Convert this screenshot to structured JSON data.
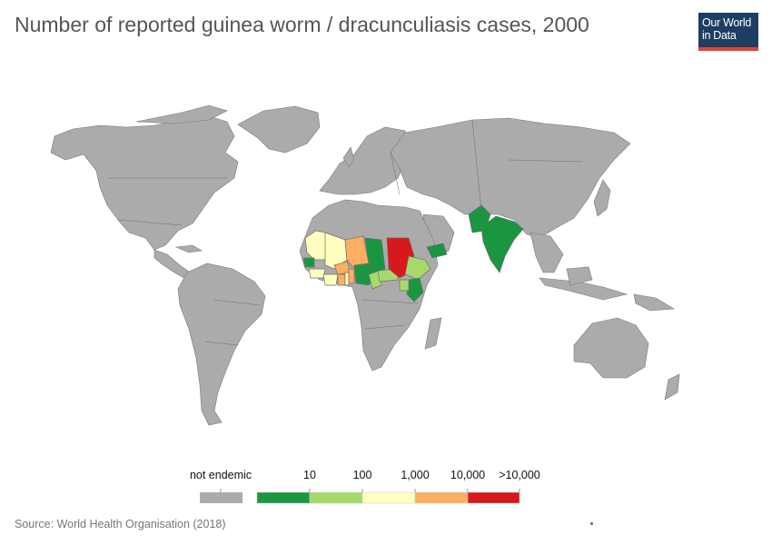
{
  "title": "Number of reported guinea worm / dracunculiasis cases, 2000",
  "logo": {
    "line1": "Our World",
    "line2": "in Data"
  },
  "source": "Source: World Health Organisation (2018)",
  "colors": {
    "not_endemic": "#ababab",
    "bin_1_10": "#1a9641",
    "bin_10_100": "#a6d96a",
    "bin_100_1000": "#ffffbf",
    "bin_1000_10000": "#fdae61",
    "bin_over_10000": "#d7191c",
    "brand_blue": "#1d3d63",
    "brand_red": "#e0452b"
  },
  "legend": {
    "not_endemic_label": "not endemic",
    "ticks": [
      "10",
      "100",
      "1,000",
      "10,000",
      ">10,000"
    ]
  },
  "countries": {
    "green": [
      "Senegal",
      "Niger",
      "Nigeria",
      "Central African Republic",
      "Kenya",
      "Yemen",
      "Pakistan",
      "India"
    ],
    "light_green": [
      "Cameroon",
      "Ethiopia",
      "Uganda"
    ],
    "pale_yellow": [
      "Mauritania",
      "Mali",
      "Guinea",
      "Cote d'Ivoire",
      "Togo"
    ],
    "orange": [
      "Burkina Faso",
      "Ghana",
      "Benin"
    ],
    "red": [
      "Sudan"
    ]
  }
}
